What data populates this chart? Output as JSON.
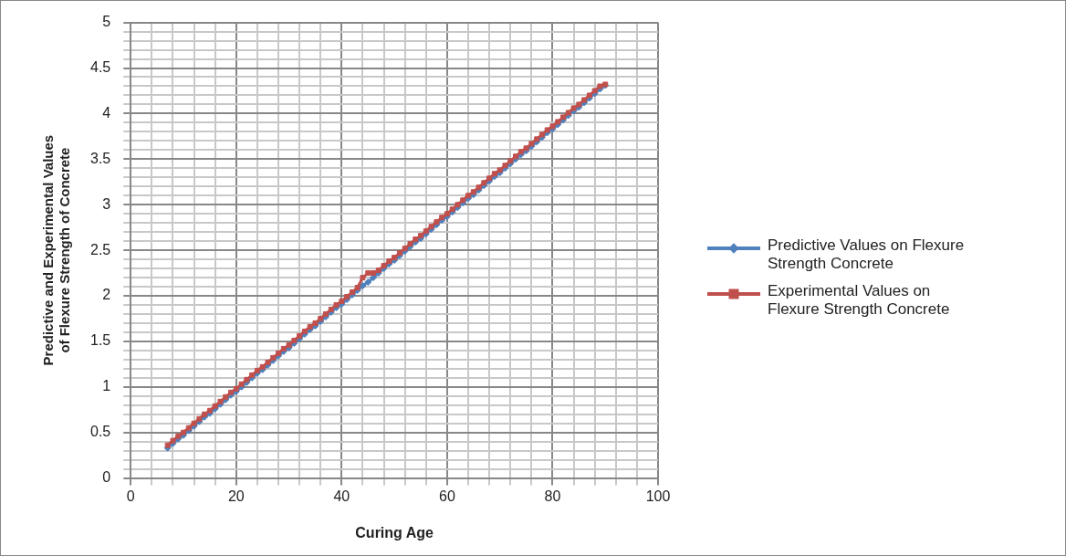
{
  "chart_data": {
    "type": "line",
    "xlabel": "Curing Age",
    "ylabel": "Predictive and Experimental Values of Flexure Strength of Concrete",
    "x": [
      7,
      8,
      9,
      10,
      11,
      12,
      13,
      14,
      15,
      16,
      17,
      18,
      19,
      20,
      21,
      22,
      23,
      24,
      25,
      26,
      27,
      28,
      29,
      30,
      31,
      32,
      33,
      34,
      35,
      36,
      37,
      38,
      39,
      40,
      41,
      42,
      43,
      44,
      45,
      46,
      47,
      48,
      49,
      50,
      51,
      52,
      53,
      54,
      55,
      56,
      57,
      58,
      59,
      60,
      61,
      62,
      63,
      64,
      65,
      66,
      67,
      68,
      69,
      70,
      71,
      72,
      73,
      74,
      75,
      76,
      77,
      78,
      79,
      80,
      81,
      82,
      83,
      84,
      85,
      86,
      87,
      88,
      89,
      90
    ],
    "series": [
      {
        "name": "Predictive Values on Flexure Strength  Concrete",
        "color": "#4f81bd",
        "marker": "diamond",
        "values": [
          0.33,
          0.38,
          0.43,
          0.47,
          0.52,
          0.57,
          0.62,
          0.67,
          0.71,
          0.76,
          0.81,
          0.86,
          0.91,
          0.95,
          1.0,
          1.05,
          1.1,
          1.15,
          1.19,
          1.24,
          1.29,
          1.34,
          1.39,
          1.43,
          1.48,
          1.53,
          1.58,
          1.63,
          1.67,
          1.72,
          1.77,
          1.82,
          1.87,
          1.91,
          1.96,
          2.01,
          2.06,
          2.11,
          2.15,
          2.2,
          2.25,
          2.3,
          2.35,
          2.39,
          2.44,
          2.49,
          2.54,
          2.59,
          2.63,
          2.68,
          2.73,
          2.78,
          2.83,
          2.87,
          2.92,
          2.97,
          3.02,
          3.07,
          3.11,
          3.16,
          3.21,
          3.26,
          3.31,
          3.35,
          3.4,
          3.45,
          3.5,
          3.55,
          3.59,
          3.64,
          3.69,
          3.74,
          3.79,
          3.83,
          3.88,
          3.93,
          3.98,
          4.03,
          4.07,
          4.12,
          4.17,
          4.22,
          4.27,
          4.31
        ]
      },
      {
        "name": "Experimental  Values on Flexure Strength  Concrete",
        "color": "#c0504d",
        "values": [
          0.36,
          0.41,
          0.46,
          0.5,
          0.55,
          0.6,
          0.65,
          0.7,
          0.74,
          0.79,
          0.84,
          0.89,
          0.94,
          0.98,
          1.03,
          1.08,
          1.13,
          1.18,
          1.22,
          1.27,
          1.32,
          1.37,
          1.42,
          1.46,
          1.51,
          1.56,
          1.61,
          1.66,
          1.7,
          1.75,
          1.8,
          1.85,
          1.9,
          1.94,
          1.99,
          2.04,
          2.09,
          2.2,
          2.25,
          2.25,
          2.28,
          2.33,
          2.38,
          2.42,
          2.47,
          2.52,
          2.57,
          2.62,
          2.66,
          2.71,
          2.76,
          2.81,
          2.86,
          2.9,
          2.95,
          3.0,
          3.05,
          3.1,
          3.14,
          3.19,
          3.24,
          3.29,
          3.34,
          3.38,
          3.43,
          3.48,
          3.53,
          3.58,
          3.62,
          3.67,
          3.72,
          3.77,
          3.82,
          3.86,
          3.91,
          3.96,
          4.01,
          4.06,
          4.1,
          4.15,
          4.2,
          4.25,
          4.3,
          4.32
        ]
      }
    ],
    "xlim": [
      0,
      100
    ],
    "xticks": [
      0,
      {
        "value": 4,
        "label": null
      },
      {
        "value": 8,
        "label": null
      },
      {
        "value": 12,
        "label": null
      },
      {
        "value": 16,
        "label": null
      },
      20,
      {
        "value": 24,
        "label": null
      },
      {
        "value": 28,
        "label": null
      },
      {
        "value": 32,
        "label": null
      },
      {
        "value": 36,
        "label": null
      },
      40,
      {
        "value": 44,
        "label": null
      },
      {
        "value": 48,
        "label": null
      },
      {
        "value": 52,
        "label": null
      },
      {
        "value": 56,
        "label": null
      },
      60,
      {
        "value": 64,
        "label": null
      },
      {
        "value": 68,
        "label": null
      },
      {
        "value": 72,
        "label": null
      },
      {
        "value": 76,
        "label": null
      },
      80,
      {
        "value": 84,
        "label": null
      },
      {
        "value": 88,
        "label": null
      },
      {
        "value": 92,
        "label": null
      },
      {
        "value": 96,
        "label": null
      },
      100
    ],
    "ylim": [
      0,
      5
    ],
    "yticks": [
      0,
      {
        "value": 0.1,
        "label": null
      },
      {
        "value": 0.2,
        "label": null
      },
      {
        "value": 0.3,
        "label": null
      },
      {
        "value": 0.4,
        "label": null
      },
      0.5,
      {
        "value": 0.6,
        "label": null
      },
      {
        "value": 0.7,
        "label": null
      },
      {
        "value": 0.8,
        "label": null
      },
      {
        "value": 0.9,
        "label": null
      },
      1,
      {
        "value": 1.1,
        "label": null
      },
      {
        "value": 1.2,
        "label": null
      },
      {
        "value": 1.3,
        "label": null
      },
      {
        "value": 1.4,
        "label": null
      },
      1.5,
      {
        "value": 1.6,
        "label": null
      },
      {
        "value": 1.7,
        "label": null
      },
      {
        "value": 1.8,
        "label": null
      },
      {
        "value": 1.9,
        "label": null
      },
      2,
      {
        "value": 2.1,
        "label": null
      },
      {
        "value": 2.2,
        "label": null
      },
      {
        "value": 2.3,
        "label": null
      },
      {
        "value": 2.4,
        "label": null
      },
      2.5,
      {
        "value": 2.6,
        "label": null
      },
      {
        "value": 2.7,
        "label": null
      },
      {
        "value": 2.8,
        "label": null
      },
      {
        "value": 2.9,
        "label": null
      },
      3,
      {
        "value": 3.1,
        "label": null
      },
      {
        "value": 3.2,
        "label": null
      },
      {
        "value": 3.3,
        "label": null
      },
      {
        "value": 3.4,
        "label": null
      },
      3.5,
      {
        "value": 3.6,
        "label": null
      },
      {
        "value": 3.7,
        "label": null
      },
      {
        "value": 3.8,
        "label": null
      },
      {
        "value": 3.9,
        "label": null
      },
      4,
      {
        "value": 4.1,
        "label": null
      },
      {
        "value": 4.2,
        "label": null
      },
      {
        "value": 4.3,
        "label": null
      },
      {
        "value": 4.4,
        "label": null
      },
      4.5,
      {
        "value": 4.6,
        "label": null
      },
      {
        "value": 4.7,
        "label": null
      },
      {
        "value": 4.8,
        "label": null
      },
      {
        "value": 4.9,
        "label": null
      },
      5
    ],
    "grid": true,
    "marker": "square",
    "legend": "right",
    "line_style": "solid"
  }
}
